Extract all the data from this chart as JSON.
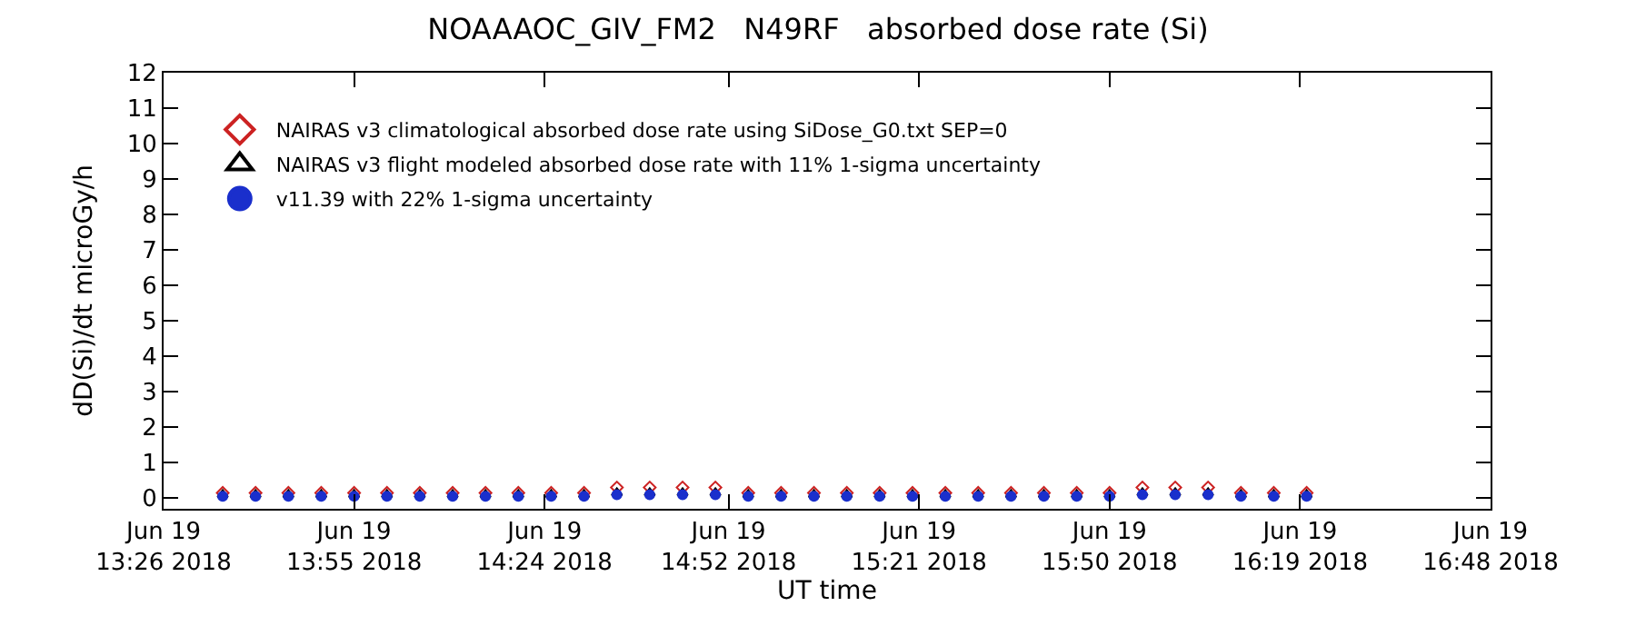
{
  "chart_data": {
    "type": "scatter",
    "title": "NOAAAOC_GIV_FM2   N49RF   absorbed dose rate (Si)",
    "xlabel": "UT time",
    "ylabel": "dD(Si)/dt microGy/h",
    "x": [
      "2018-06-19T13:35",
      "2018-06-19T13:40",
      "2018-06-19T13:45",
      "2018-06-19T13:50",
      "2018-06-19T13:55",
      "2018-06-19T14:00",
      "2018-06-19T14:05",
      "2018-06-19T14:10",
      "2018-06-19T14:15",
      "2018-06-19T14:20",
      "2018-06-19T14:25",
      "2018-06-19T14:30",
      "2018-06-19T14:35",
      "2018-06-19T14:40",
      "2018-06-19T14:45",
      "2018-06-19T14:50",
      "2018-06-19T14:55",
      "2018-06-19T15:00",
      "2018-06-19T15:05",
      "2018-06-19T15:10",
      "2018-06-19T15:15",
      "2018-06-19T15:20",
      "2018-06-19T15:25",
      "2018-06-19T15:30",
      "2018-06-19T15:35",
      "2018-06-19T15:40",
      "2018-06-19T15:45",
      "2018-06-19T15:50",
      "2018-06-19T15:55",
      "2018-06-19T16:00",
      "2018-06-19T16:05",
      "2018-06-19T16:10",
      "2018-06-19T16:15",
      "2018-06-19T16:20"
    ],
    "series": [
      {
        "name": "NAIRAS v3 climatological absorbed dose rate using SiDose_G0.txt SEP=0",
        "color": "#cc2222",
        "marker": "diamond",
        "values": [
          0.15,
          0.15,
          0.15,
          0.15,
          0.15,
          0.15,
          0.15,
          0.15,
          0.15,
          0.15,
          0.15,
          0.15,
          0.3,
          0.3,
          0.3,
          0.3,
          0.15,
          0.15,
          0.15,
          0.15,
          0.15,
          0.15,
          0.15,
          0.15,
          0.15,
          0.15,
          0.15,
          0.15,
          0.3,
          0.3,
          0.3,
          0.15,
          0.15,
          0.15
        ]
      },
      {
        "name": "NAIRAS v3 flight modeled absorbed dose rate with 11% 1-sigma uncertainty",
        "color": "#000000",
        "marker": "triangle",
        "values": [
          0.1,
          0.1,
          0.1,
          0.1,
          0.1,
          0.1,
          0.1,
          0.1,
          0.1,
          0.1,
          0.1,
          0.1,
          0.15,
          0.15,
          0.15,
          0.15,
          0.1,
          0.1,
          0.1,
          0.1,
          0.1,
          0.1,
          0.1,
          0.1,
          0.1,
          0.1,
          0.1,
          0.1,
          0.15,
          0.15,
          0.15,
          0.1,
          0.1,
          0.1
        ]
      },
      {
        "name": "v11.39 with 22% 1-sigma uncertainty",
        "color": "#1a2fcc",
        "marker": "circle",
        "values": [
          0.05,
          0.05,
          0.05,
          0.05,
          0.05,
          0.05,
          0.05,
          0.05,
          0.05,
          0.05,
          0.05,
          0.05,
          0.1,
          0.1,
          0.1,
          0.1,
          0.05,
          0.05,
          0.05,
          0.05,
          0.05,
          0.05,
          0.05,
          0.05,
          0.05,
          0.05,
          0.05,
          0.05,
          0.1,
          0.1,
          0.1,
          0.05,
          0.05,
          0.05
        ]
      }
    ],
    "xlim": [
      "2018-06-19T13:26",
      "2018-06-19T16:48"
    ],
    "xticks": [
      {
        "value": "2018-06-19T13:26",
        "label": "Jun 19\n13:26 2018"
      },
      {
        "value": "2018-06-19T13:55",
        "label": "Jun 19\n13:55 2018"
      },
      {
        "value": "2018-06-19T14:24",
        "label": "Jun 19\n14:24 2018"
      },
      {
        "value": "2018-06-19T14:52",
        "label": "Jun 19\n14:52 2018"
      },
      {
        "value": "2018-06-19T15:21",
        "label": "Jun 19\n15:21 2018"
      },
      {
        "value": "2018-06-19T15:50",
        "label": "Jun 19\n15:50 2018"
      },
      {
        "value": "2018-06-19T16:19",
        "label": "Jun 19\n16:19 2018"
      },
      {
        "value": "2018-06-19T16:48",
        "label": "Jun 19\n16:48 2018"
      }
    ],
    "ylim": [
      -0.3,
      12
    ],
    "yticks": [
      0,
      1,
      2,
      3,
      4,
      5,
      6,
      7,
      8,
      9,
      10,
      11,
      12
    ],
    "legend": "top left"
  }
}
